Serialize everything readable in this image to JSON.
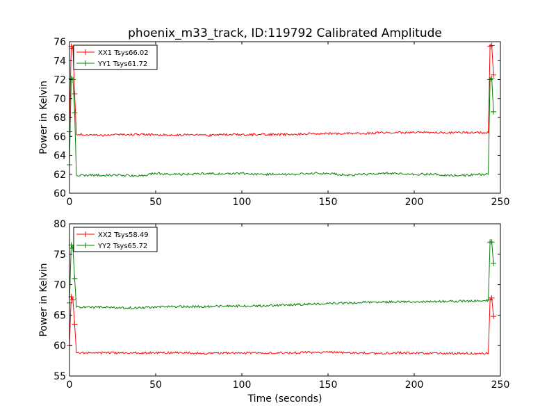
{
  "title": "phoenix_m33_track, ID:119792 Calibrated Amplitude",
  "colors": {
    "xx": "#ff0000",
    "yy": "#008000"
  },
  "chart_data": [
    {
      "type": "line",
      "ylabel": "Power in Kelvin",
      "xlabel": "",
      "xlim": [
        0,
        250
      ],
      "ylim": [
        60,
        76
      ],
      "xticks": [
        "0",
        "50",
        "100",
        "150",
        "200",
        "250"
      ],
      "yticks": [
        "60",
        "62",
        "64",
        "66",
        "68",
        "70",
        "72",
        "74",
        "76"
      ],
      "legend": "top-left",
      "grid": false,
      "series": [
        {
          "name": "XX1 Tsys66.02",
          "color": "#ff0000",
          "x": [
            0,
            1,
            2,
            3,
            4,
            10,
            20,
            30,
            40,
            50,
            60,
            70,
            80,
            90,
            100,
            110,
            120,
            130,
            140,
            150,
            160,
            170,
            180,
            190,
            200,
            210,
            220,
            230,
            240,
            243,
            244,
            245,
            246
          ],
          "y": [
            66.5,
            75.5,
            75.3,
            70.5,
            66.2,
            66.2,
            66.1,
            66.2,
            66.2,
            66.2,
            66.1,
            66.2,
            66.1,
            66.2,
            66.2,
            66.2,
            66.2,
            66.2,
            66.3,
            66.3,
            66.3,
            66.3,
            66.4,
            66.4,
            66.4,
            66.4,
            66.4,
            66.4,
            66.4,
            66.4,
            75.5,
            75.6,
            72.5
          ]
        },
        {
          "name": "YY1 Tsys61.72",
          "color": "#008000",
          "x": [
            0,
            1,
            2,
            3,
            4,
            10,
            20,
            30,
            40,
            50,
            60,
            70,
            80,
            90,
            100,
            110,
            120,
            130,
            140,
            150,
            160,
            170,
            180,
            190,
            200,
            210,
            220,
            230,
            240,
            243,
            244,
            245,
            246
          ],
          "y": [
            63.0,
            72.1,
            72.0,
            68.5,
            61.9,
            61.9,
            61.9,
            61.9,
            61.8,
            62.1,
            62.0,
            62.0,
            62.1,
            62.0,
            62.1,
            62.0,
            62.0,
            62.0,
            62.1,
            62.1,
            61.9,
            62.0,
            62.1,
            62.1,
            62.0,
            62.0,
            61.9,
            61.9,
            62.0,
            62.0,
            72.0,
            72.1,
            68.6
          ]
        }
      ]
    },
    {
      "type": "line",
      "ylabel": "Power in Kelvin",
      "xlabel": "Time (seconds)",
      "xlim": [
        0,
        250
      ],
      "ylim": [
        55,
        80
      ],
      "xticks": [
        "0",
        "50",
        "100",
        "150",
        "200",
        "250"
      ],
      "yticks": [
        "55",
        "60",
        "65",
        "70",
        "75",
        "80"
      ],
      "legend": "top-left",
      "grid": false,
      "series": [
        {
          "name": "XX2 Tsys58.49",
          "color": "#ff0000",
          "x": [
            0,
            1,
            2,
            3,
            4,
            10,
            20,
            30,
            40,
            50,
            60,
            70,
            80,
            90,
            100,
            110,
            120,
            130,
            140,
            150,
            160,
            170,
            180,
            190,
            200,
            210,
            220,
            230,
            240,
            243,
            244,
            245,
            246
          ],
          "y": [
            60.0,
            68.0,
            67.5,
            63.5,
            58.8,
            58.8,
            58.8,
            58.8,
            58.8,
            58.8,
            58.8,
            58.8,
            58.7,
            58.8,
            58.8,
            58.8,
            58.8,
            58.8,
            58.9,
            58.9,
            58.8,
            58.8,
            58.7,
            58.8,
            58.8,
            58.7,
            58.7,
            58.7,
            58.7,
            58.7,
            67.5,
            67.8,
            64.8
          ]
        },
        {
          "name": "YY2 Tsys65.72",
          "color": "#008000",
          "x": [
            0,
            1,
            2,
            3,
            4,
            10,
            20,
            30,
            40,
            50,
            60,
            70,
            80,
            90,
            100,
            110,
            120,
            130,
            140,
            150,
            160,
            170,
            180,
            190,
            200,
            210,
            220,
            230,
            240,
            243,
            244,
            245,
            246
          ],
          "y": [
            67.0,
            76.5,
            76.0,
            71.0,
            66.3,
            66.3,
            66.3,
            66.2,
            66.2,
            66.3,
            66.4,
            66.4,
            66.4,
            66.5,
            66.5,
            66.5,
            66.6,
            66.7,
            66.8,
            66.9,
            67.0,
            67.1,
            67.1,
            67.2,
            67.2,
            67.2,
            67.3,
            67.3,
            67.4,
            67.4,
            77.0,
            77.0,
            73.5
          ]
        }
      ]
    }
  ]
}
